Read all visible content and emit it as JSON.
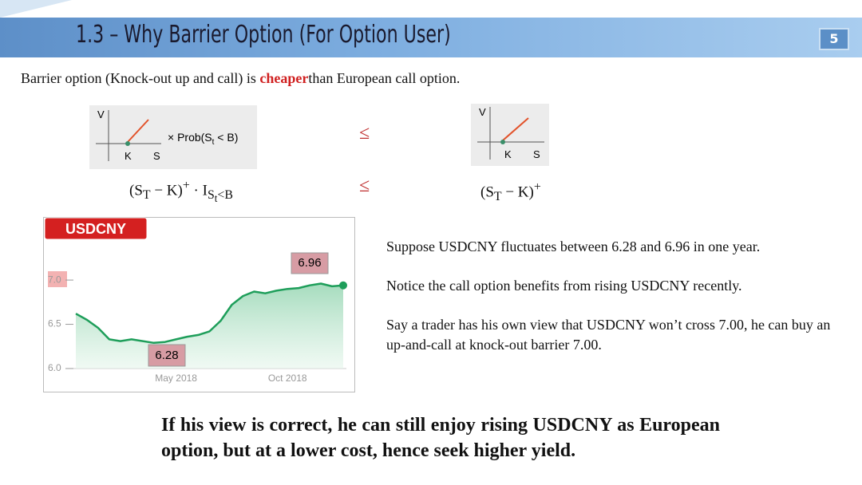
{
  "header": {
    "title": "1.3 – Why Barrier Option (For Option User)",
    "page_number": "5"
  },
  "intro": [
    "Barrier option (Knock-out up and call) is ",
    "cheaper",
    "than European call option."
  ],
  "left_diagram": {
    "v": "V",
    "k": "K",
    "s": "S",
    "prob": [
      "× Prob(S",
      "t",
      " < B)"
    ]
  },
  "right_diagram": {
    "v": "V",
    "k": "K",
    "s": "S"
  },
  "relations": [
    "≤",
    "≤"
  ],
  "formula_left": [
    "(S",
    "T",
    " − K)",
    "+",
    " · I",
    "S",
    "t",
    "<B"
  ],
  "formula_right": [
    "(S",
    "T",
    " − K)",
    "+"
  ],
  "chart_data": {
    "type": "line",
    "title": "USDCNY",
    "categories": [
      null,
      null,
      null,
      null,
      null,
      null,
      null,
      null,
      null,
      "May 2018",
      null,
      null,
      null,
      null,
      null,
      null,
      null,
      null,
      null,
      "Oct 2018",
      null,
      null,
      null,
      null,
      null
    ],
    "series": [
      {
        "name": "USDCNY",
        "color": "#1e9e5a",
        "values": [
          6.62,
          6.55,
          6.46,
          6.33,
          6.31,
          6.33,
          6.31,
          6.29,
          6.3,
          6.33,
          6.36,
          6.38,
          6.42,
          6.54,
          6.72,
          6.82,
          6.87,
          6.85,
          6.88,
          6.9,
          6.91,
          6.94,
          6.96,
          6.93,
          6.94
        ]
      }
    ],
    "ylim": [
      6,
      7.1
    ],
    "yticks": [
      {
        "value": 6,
        "label": "6.0"
      },
      {
        "value": 6.5,
        "label": "6.5"
      },
      {
        "value": 7,
        "label": "7.0"
      }
    ],
    "annotations": [
      "6.28",
      "6.96"
    ]
  },
  "bullets": [
    "Suppose USDCNY fluctuates between 6.28 and 6.96 in one year.",
    "Notice the call option benefits from rising USDCNY recently.",
    "Say a trader has his own view that USDCNY won’t cross 7.00, he can buy an up-and-call at knock-out barrier 7.00."
  ],
  "conclusion": "If his view is correct, he can still enjoy rising USDCNY as European option, but at a lower cost, hence seek higher yield."
}
